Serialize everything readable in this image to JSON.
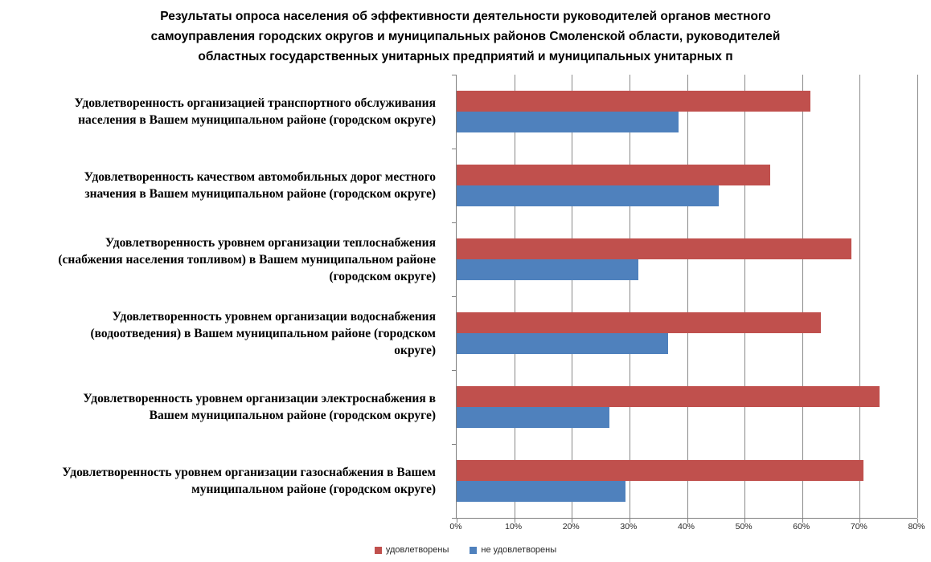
{
  "title": {
    "text": "Результаты опроса населения об эффективности деятельности руководителей органов местного самоуправления городских округов и муниципальных районов Смоленской области, руководителей областных государственных унитарных предприятий и муниципальных унитарных п",
    "lines": [
      "Результаты опроса населения об эффективности деятельности руководителей органов местного",
      "самоуправления городских округов и муниципальных районов Смоленской области, руководителей",
      "областных государственных унитарных предприятий и муниципальных унитарных п"
    ]
  },
  "chart_data": {
    "type": "bar",
    "orientation": "horizontal",
    "title": "Результаты опроса населения об эффективности деятельности руководителей органов местного самоуправления городских округов и муниципальных районов Смоленской области, руководителей областных государственных унитарных предприятий и муниципальных унитарных п",
    "categories": [
      {
        "text": "Удовлетворенность организацией транспортного обслуживания населения в Вашем муниципальном районе (городском округе)",
        "lines": [
          "Удовлетворенность организацией транспортного обслуживания",
          "населения в Вашем муниципальном районе (городском округе)"
        ]
      },
      {
        "text": "Удовлетворенность качеством автомобильных дорог местного значения в Вашем муниципальном районе (городском округе)",
        "lines": [
          "Удовлетворенность качеством автомобильных дорог местного",
          "значения в Вашем муниципальном районе (городском округе)"
        ]
      },
      {
        "text": "Удовлетворенность уровнем организации теплоснабжения (снабжения населения топливом) в Вашем муниципальном районе (городском округе)",
        "lines": [
          "Удовлетворенность уровнем организации теплоснабжения",
          "(снабжения населения топливом) в Вашем муниципальном районе",
          "(городском округе)"
        ]
      },
      {
        "text": "Удовлетворенность уровнем организации водоснабжения (водоотведения) в Вашем муниципальном районе (городском округе)",
        "lines": [
          "Удовлетворенность уровнем организации водоснабжения",
          "(водоотведения) в Вашем муниципальном районе (городском",
          "округе)"
        ]
      },
      {
        "text": "Удовлетворенность уровнем организации электроснабжения в Вашем муниципальном районе (городском округе)",
        "lines": [
          "Удовлетворенность уровнем организации электроснабжения в",
          "Вашем муниципальном районе (городском округе)"
        ]
      },
      {
        "text": "Удовлетворенность уровнем организации газоснабжения в Вашем муниципальном районе (городском округе)",
        "lines": [
          "Удовлетворенность уровнем организации газоснабжения в Вашем",
          "муниципальном районе (городском округе)"
        ]
      }
    ],
    "series": [
      {
        "key": "satisfied",
        "name": "удовлетворены",
        "color": "#C0504D",
        "values": [
          61.5,
          54.5,
          68.5,
          63.3,
          73.5,
          70.7
        ]
      },
      {
        "key": "not-satisfied",
        "name": "не удовлетворены",
        "color": "#4F81BD",
        "values": [
          38.5,
          45.5,
          31.5,
          36.7,
          26.5,
          29.3
        ]
      }
    ],
    "x_axis": {
      "min": 0,
      "max": 80,
      "step": 10,
      "unit": "%",
      "tick_labels": [
        "0%",
        "10%",
        "20%",
        "30%",
        "40%",
        "50%",
        "60%",
        "70%",
        "80%"
      ]
    },
    "grid": true,
    "legend_position": "bottom",
    "colors": {
      "axis": "#808080",
      "gridline": "#898989",
      "text": "#000000"
    }
  }
}
